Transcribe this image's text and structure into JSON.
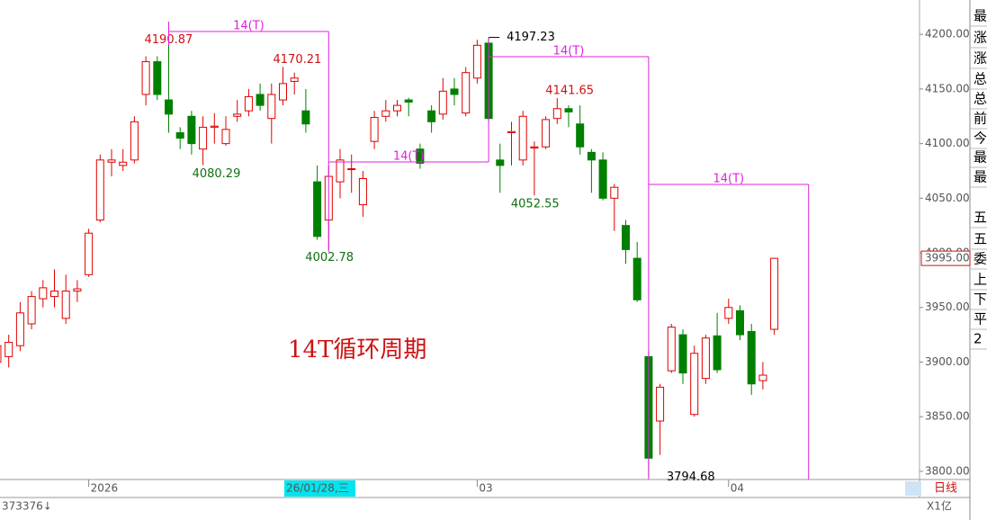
{
  "chart_data": {
    "type": "candlestick",
    "title": "14T循环周期",
    "categories": [
      null,
      null,
      null,
      null,
      null,
      null,
      null,
      null,
      "2026",
      null,
      null,
      null,
      null,
      null,
      null,
      null,
      null,
      null,
      null,
      null,
      null,
      null,
      null,
      null,
      null,
      null,
      null,
      null,
      null,
      null,
      null,
      null,
      null,
      null,
      null,
      null,
      null,
      null,
      null,
      null,
      null,
      null,
      "03",
      null,
      null,
      null,
      null,
      null,
      null,
      null,
      null,
      null,
      null,
      null,
      null,
      null,
      null,
      null,
      null,
      null,
      null,
      null,
      null,
      null,
      "04",
      null,
      null,
      null,
      null
    ],
    "series": [
      {
        "name": "open",
        "values": [
          3900,
          3905,
          3915,
          3935,
          3958,
          3960,
          3940,
          3965,
          3980,
          4030,
          4083,
          4080,
          4085,
          4145,
          4175,
          4140,
          4110,
          4125,
          4095,
          4115,
          4100,
          4125,
          4130,
          4145,
          4123,
          4140,
          4157,
          4130,
          4065,
          4030,
          4065,
          4077,
          4044,
          4102,
          4125,
          4130,
          4140,
          4095,
          4130,
          4127,
          4150,
          4128,
          4160,
          4192,
          4085,
          4110,
          4085,
          4096,
          4097,
          4123,
          4132,
          4118,
          4092,
          4085,
          4050,
          4025,
          3995,
          3905,
          3846,
          3892,
          3925,
          3852,
          3885,
          3924,
          3940,
          3947,
          3928,
          3883,
          3930
        ]
      },
      {
        "name": "high",
        "values": [
          3920,
          3925,
          3955,
          3965,
          3975,
          3985,
          3980,
          3975,
          4022,
          4090,
          4095,
          4095,
          4125,
          4180,
          4180,
          4190.87,
          4115,
          4130,
          4125,
          4128,
          4125,
          4140,
          4150,
          4155,
          4155,
          4170.21,
          4165,
          4150,
          4080,
          4080,
          4095,
          4090,
          4075,
          4130,
          4140,
          4140,
          4142,
          4100,
          4135,
          4160,
          4160,
          4170,
          4195,
          4197.23,
          4100,
          4120,
          4130,
          4102,
          4125,
          4141.65,
          4135,
          4135,
          4095,
          4092,
          4063,
          4030,
          4010,
          3910,
          3880,
          3935,
          3930,
          3915,
          3925,
          3945,
          3958,
          3952,
          3935,
          3900,
          3995
        ]
      },
      {
        "name": "low",
        "values": [
          3895,
          3895,
          3910,
          3930,
          3950,
          3950,
          3935,
          3955,
          3978,
          4028,
          4070,
          4075,
          4082,
          4135,
          4140,
          4110,
          4095,
          4090,
          4080.29,
          4100,
          4098,
          4120,
          4125,
          4130,
          4100,
          4135,
          4145,
          4110,
          4012,
          4002.78,
          4050,
          4055,
          4033,
          4095,
          4120,
          4125,
          4125,
          4077,
          4110,
          4122,
          4135,
          4125,
          4155,
          4120,
          4055,
          4080,
          4080,
          4052.55,
          4095,
          4118,
          4115,
          4090,
          4055,
          4048,
          4020,
          3990,
          3955,
          3794.68,
          3815,
          3890,
          3880,
          3850,
          3880,
          3890,
          3935,
          3920,
          3870,
          3875,
          3925
        ]
      },
      {
        "name": "close",
        "values": [
          3915,
          3918,
          3945,
          3960,
          3968,
          3965,
          3965,
          3967,
          4018,
          4085,
          4085,
          4083,
          4120,
          4175,
          4145,
          4127,
          4105,
          4100,
          4115,
          4116,
          4113,
          4127,
          4143,
          4135,
          4145,
          4155,
          4160,
          4118,
          4015,
          4070,
          4085,
          4077,
          4068,
          4124,
          4130,
          4135,
          4138,
          4082,
          4120,
          4148,
          4145,
          4165,
          4190,
          4123,
          4080,
          4111,
          4125,
          4097,
          4122,
          4132,
          4129,
          4097,
          4085,
          4050,
          4060,
          4003,
          3957,
          3812,
          3877,
          3932,
          3890,
          3908,
          3922,
          3893,
          3950,
          3925,
          3880,
          3888,
          3995
        ]
      }
    ],
    "up_color": "#e00000",
    "down_color": "#008000",
    "ylim": [
      3790,
      4215
    ],
    "yticks": [
      {
        "value": 3800,
        "label": "3800.00"
      },
      {
        "value": 3850,
        "label": "3850.00"
      },
      {
        "value": 3900,
        "label": "3900.00"
      },
      {
        "value": 3950,
        "label": "3950.00"
      },
      {
        "value": 4000,
        "label": "4000.00"
      },
      {
        "value": 4050,
        "label": "4050.00"
      },
      {
        "value": 4100,
        "label": "4100.00"
      },
      {
        "value": 4150,
        "label": "4150.00"
      },
      {
        "value": 4200,
        "label": "4200.00"
      }
    ],
    "last_price": {
      "value": 3995,
      "label": "3995.00"
    },
    "cycle_labels": [
      "14(T)",
      "14(T)",
      "14(T)",
      "14(T)"
    ],
    "cursor_label": "26/01/28,三",
    "period": "日线",
    "volume_label": "373376↓",
    "unit_label": "X1亿",
    "side_panel": [
      "最",
      "涨",
      "涨",
      "总",
      "总",
      "前",
      "今",
      "最",
      "最",
      "五",
      "五",
      "委",
      "上",
      "下",
      "平",
      "2"
    ]
  }
}
